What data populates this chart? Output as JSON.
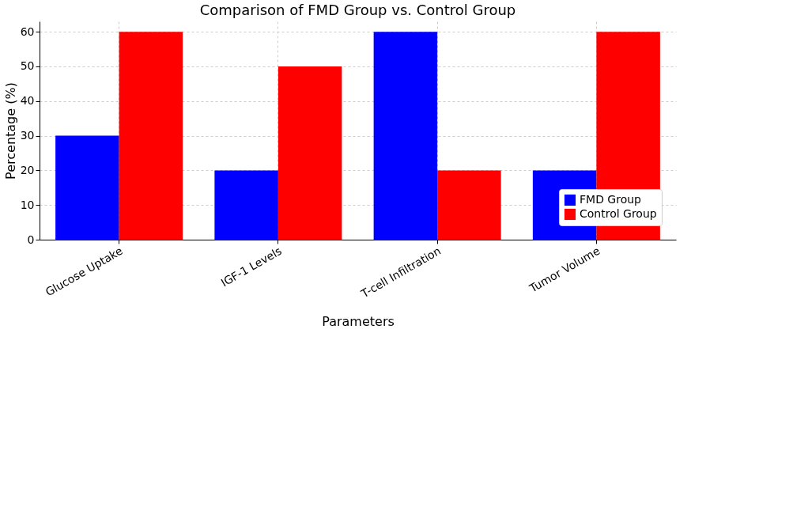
{
  "chart_data": {
    "type": "bar",
    "title": "Comparison of FMD Group vs. Control Group",
    "xlabel": "Parameters",
    "ylabel": "Percentage (%)",
    "categories": [
      "Glucose Uptake",
      "IGF-1 Levels",
      "T-cell Infiltration",
      "Tumor Volume"
    ],
    "series": [
      {
        "name": "FMD Group",
        "color": "#0000ff",
        "values": [
          30,
          20,
          60,
          20
        ]
      },
      {
        "name": "Control Group",
        "color": "#ff0000",
        "values": [
          60,
          50,
          20,
          60
        ]
      }
    ],
    "ylim": [
      0,
      63
    ],
    "yticks": [
      0,
      10,
      20,
      30,
      40,
      50,
      60
    ],
    "grid": true,
    "legend": "bottom right"
  }
}
